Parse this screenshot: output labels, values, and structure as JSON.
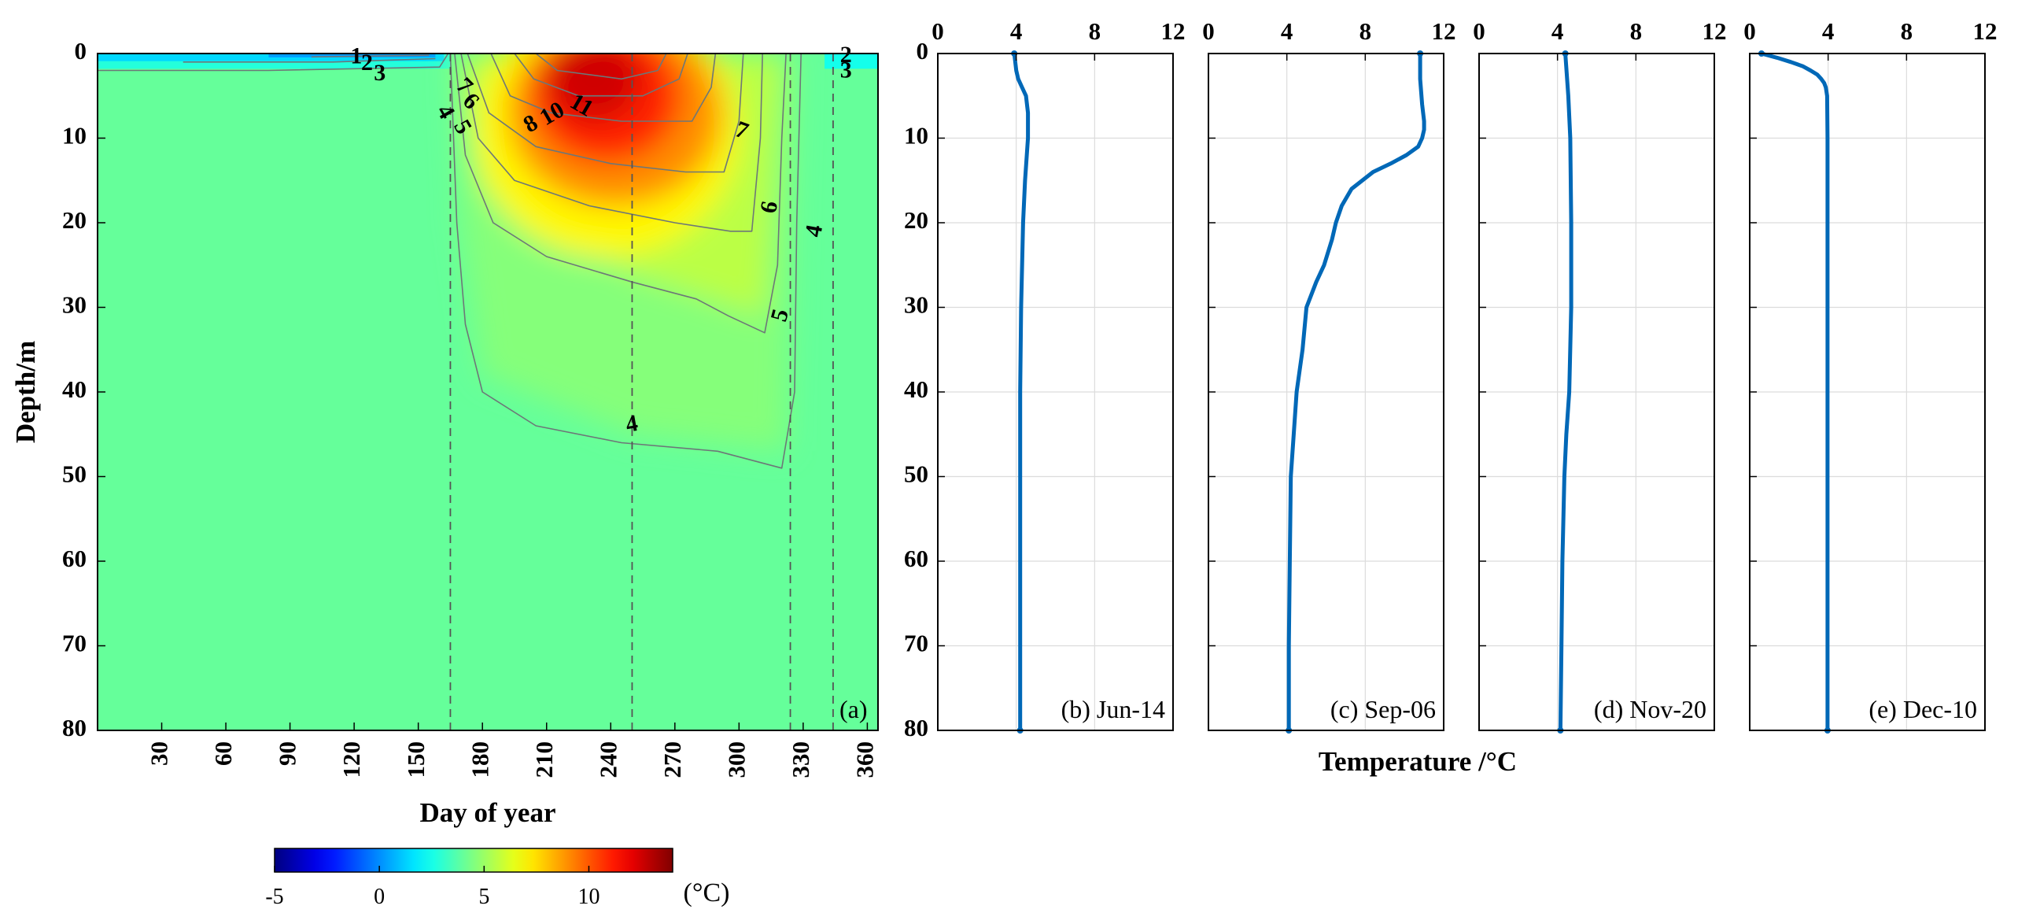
{
  "chart_data": [
    {
      "panel": "a",
      "type": "heatmap",
      "title": "",
      "panel_label": "(a)",
      "xlabel": "Day of year",
      "ylabel": "Depth/m",
      "xlim": [
        0,
        365
      ],
      "ylim": [
        0,
        80
      ],
      "x_ticks": [
        30,
        60,
        90,
        120,
        150,
        180,
        210,
        240,
        270,
        300,
        330,
        360
      ],
      "y_ticks": [
        0,
        10,
        20,
        30,
        40,
        50,
        60,
        70,
        80
      ],
      "y_reversed": true,
      "background_value": 4,
      "vertical_markers_day": [
        165,
        250,
        324,
        344
      ],
      "warm_core_ellipses": [
        {
          "day": 238,
          "depth": 9,
          "rday": 62,
          "rdepth": 15,
          "value": 7
        },
        {
          "day": 242,
          "depth": 7,
          "rday": 50,
          "rdepth": 11,
          "value": 9
        },
        {
          "day": 238,
          "depth": 5,
          "rday": 35,
          "rdepth": 8,
          "value": 11
        },
        {
          "day": 232,
          "depth": 3,
          "rday": 22,
          "rdepth": 5,
          "value": 12.5
        }
      ],
      "contours": [
        {
          "label": "4",
          "points": [
            [
              165,
              0
            ],
            [
              168,
              20
            ],
            [
              172,
              32
            ],
            [
              180,
              40
            ],
            [
              205,
              44
            ],
            [
              245,
              46
            ],
            [
              290,
              47
            ],
            [
              320,
              49
            ],
            [
              326,
              40
            ],
            [
              327,
              20
            ],
            [
              329,
              0
            ]
          ]
        },
        {
          "label": "5",
          "points": [
            [
              167,
              0
            ],
            [
              172,
              12
            ],
            [
              185,
              20
            ],
            [
              210,
              24
            ],
            [
              250,
              27
            ],
            [
              280,
              29
            ],
            [
              295,
              31
            ],
            [
              312,
              33
            ],
            [
              318,
              25
            ],
            [
              320,
              10
            ],
            [
              322,
              0
            ]
          ]
        },
        {
          "label": "6",
          "points": [
            [
              170,
              0
            ],
            [
              178,
              10
            ],
            [
              195,
              15
            ],
            [
              230,
              18
            ],
            [
              270,
              20
            ],
            [
              296,
              21
            ],
            [
              306,
              21
            ],
            [
              310,
              10
            ],
            [
              311,
              0
            ]
          ]
        },
        {
          "label": "7",
          "points": [
            [
              173,
              0
            ],
            [
              183,
              7
            ],
            [
              205,
              11
            ],
            [
              240,
              13
            ],
            [
              275,
              14
            ],
            [
              293,
              14
            ],
            [
              300,
              8
            ],
            [
              302,
              0
            ]
          ]
        },
        {
          "label": "8",
          "points": [
            [
              184,
              0
            ],
            [
              193,
              5
            ],
            [
              212,
              7
            ],
            [
              245,
              8
            ],
            [
              278,
              8
            ],
            [
              287,
              4
            ],
            [
              289,
              0
            ]
          ]
        },
        {
          "label": "10",
          "points": [
            [
              195,
              0
            ],
            [
              204,
              3
            ],
            [
              225,
              5
            ],
            [
              255,
              5
            ],
            [
              272,
              3
            ],
            [
              276,
              0
            ]
          ]
        },
        {
          "label": "11",
          "points": [
            [
              205,
              0
            ],
            [
              215,
              2
            ],
            [
              245,
              3
            ],
            [
              262,
              2
            ],
            [
              266,
              0
            ]
          ]
        },
        {
          "label": "3",
          "points": [
            [
              0,
              2
            ],
            [
              80,
              2
            ],
            [
              160,
              1.6
            ],
            [
              164,
              0
            ]
          ]
        },
        {
          "label": "2",
          "points": [
            [
              40,
              1
            ],
            [
              110,
              1
            ],
            [
              158,
              0.6
            ]
          ]
        },
        {
          "label": "1",
          "points": [
            [
              100,
              0.4
            ],
            [
              155,
              0.2
            ]
          ]
        }
      ],
      "contour_labels": [
        {
          "text": "1",
          "day": 121,
          "depth": 0.5,
          "angle": 0
        },
        {
          "text": "2",
          "day": 126,
          "depth": 1.3,
          "angle": 0
        },
        {
          "text": "3",
          "day": 132,
          "depth": 2.5,
          "angle": 0
        },
        {
          "text": "7",
          "day": 171,
          "depth": 4,
          "angle": 45
        },
        {
          "text": "6",
          "day": 174,
          "depth": 5.8,
          "angle": 45
        },
        {
          "text": "4",
          "day": 162,
          "depth": 7,
          "angle": 60
        },
        {
          "text": "5",
          "day": 170,
          "depth": 8.8,
          "angle": 60
        },
        {
          "text": "8",
          "day": 203,
          "depth": 8.5,
          "angle": -30
        },
        {
          "text": "10",
          "day": 213,
          "depth": 7.3,
          "angle": -30
        },
        {
          "text": "11",
          "day": 226,
          "depth": 6.3,
          "angle": 30
        },
        {
          "text": "7",
          "day": 301,
          "depth": 9.3,
          "angle": 20
        },
        {
          "text": "6",
          "day": 315,
          "depth": 18.2,
          "angle": -80
        },
        {
          "text": "4",
          "day": 336,
          "depth": 21,
          "angle": -80
        },
        {
          "text": "5",
          "day": 320,
          "depth": 31,
          "angle": -75
        },
        {
          "text": "4",
          "day": 250,
          "depth": 44,
          "angle": -10
        },
        {
          "text": "2",
          "day": 350,
          "depth": 0.4,
          "angle": 0
        },
        {
          "text": "3",
          "day": 350,
          "depth": 2.2,
          "angle": 0
        }
      ]
    },
    {
      "panel": "b",
      "type": "line",
      "panel_label": "(b) Jun-14",
      "xlim": [
        0,
        12
      ],
      "x_ticks": [
        0,
        4,
        8,
        12
      ],
      "ylim": [
        0,
        80
      ],
      "y_reversed": true,
      "y_ticks": [
        0,
        10,
        20,
        30,
        40,
        50,
        60,
        70,
        80
      ],
      "depth": [
        0,
        2,
        3,
        4,
        5,
        7,
        10,
        15,
        20,
        30,
        40,
        50,
        60,
        70,
        80
      ],
      "temperature": [
        3.9,
        4.0,
        4.1,
        4.3,
        4.5,
        4.6,
        4.6,
        4.45,
        4.35,
        4.25,
        4.2,
        4.2,
        4.2,
        4.2,
        4.2
      ]
    },
    {
      "panel": "c",
      "type": "line",
      "panel_label": "(c) Sep-06",
      "xlim": [
        0,
        12
      ],
      "x_ticks": [
        0,
        4,
        8,
        12
      ],
      "ylim": [
        0,
        80
      ],
      "y_reversed": true,
      "y_ticks": [
        0,
        10,
        20,
        30,
        40,
        50,
        60,
        70,
        80
      ],
      "depth": [
        0,
        3,
        6,
        8,
        9,
        10,
        11,
        12,
        13,
        14,
        16,
        18,
        20,
        22,
        25,
        27,
        30,
        35,
        40,
        45,
        50,
        60,
        70,
        80
      ],
      "temperature": [
        10.8,
        10.8,
        10.9,
        11.0,
        11.0,
        10.9,
        10.7,
        10.1,
        9.3,
        8.4,
        7.3,
        6.8,
        6.5,
        6.3,
        5.9,
        5.5,
        5.0,
        4.8,
        4.5,
        4.35,
        4.2,
        4.15,
        4.1,
        4.1
      ]
    },
    {
      "panel": "d",
      "type": "line",
      "panel_label": "(d) Nov-20",
      "xlim": [
        0,
        12
      ],
      "x_ticks": [
        0,
        4,
        8,
        12
      ],
      "ylim": [
        0,
        80
      ],
      "y_reversed": true,
      "y_ticks": [
        0,
        10,
        20,
        30,
        40,
        50,
        60,
        70,
        80
      ],
      "depth": [
        0,
        5,
        10,
        20,
        30,
        40,
        45,
        50,
        60,
        70,
        80
      ],
      "temperature": [
        4.4,
        4.55,
        4.65,
        4.7,
        4.7,
        4.6,
        4.45,
        4.35,
        4.25,
        4.2,
        4.15
      ]
    },
    {
      "panel": "e",
      "type": "line",
      "panel_label": "(e) Dec-10",
      "xlim": [
        0,
        12
      ],
      "x_ticks": [
        0,
        4,
        8,
        12
      ],
      "ylim": [
        0,
        80
      ],
      "y_reversed": true,
      "y_ticks": [
        0,
        10,
        20,
        30,
        40,
        50,
        60,
        70,
        80
      ],
      "depth": [
        0,
        0.5,
        1,
        1.5,
        2,
        2.5,
        3,
        3.5,
        4,
        5,
        10,
        20,
        40,
        60,
        80
      ],
      "temperature": [
        0.6,
        1.4,
        2.1,
        2.7,
        3.1,
        3.45,
        3.65,
        3.8,
        3.88,
        3.95,
        3.97,
        3.97,
        3.97,
        3.97,
        3.97
      ]
    }
  ],
  "profiles_xlabel": "Temperature /°C",
  "colorbar": {
    "ticks": [
      -5,
      0,
      5,
      10
    ],
    "range": [
      -5,
      14
    ],
    "unit_label": "(°C)",
    "colormap": "jet"
  },
  "colors": {
    "profile_line": "#0068b7",
    "contour_line": "#6d7778",
    "marker_line": "#555555",
    "background_field": "#00f58a"
  }
}
